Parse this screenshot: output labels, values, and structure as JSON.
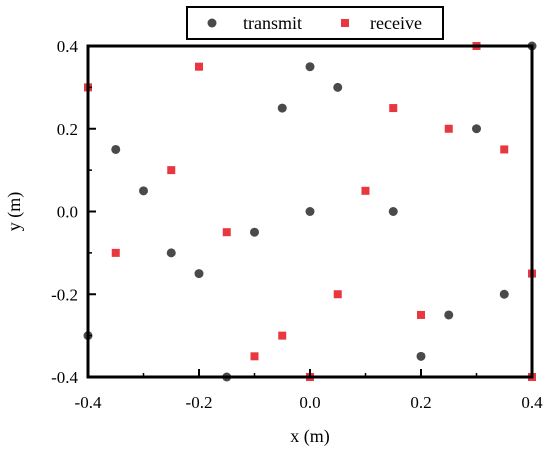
{
  "chart_data": {
    "type": "scatter",
    "title": "",
    "xlabel": "x (m)",
    "ylabel": "y (m)",
    "xlim": [
      -0.4,
      0.4
    ],
    "ylim": [
      -0.4,
      0.4
    ],
    "xticks": [
      "-0.4",
      "-0.2",
      "0.0",
      "0.2",
      "0.4"
    ],
    "yticks": [
      "-0.4",
      "-0.2",
      "0.0",
      "0.2",
      "0.4"
    ],
    "grid": false,
    "legend_position": "top-center",
    "series": [
      {
        "name": "transmit",
        "marker": "circle",
        "color": "#4a4a4a",
        "points": [
          [
            0.0,
            0.35
          ],
          [
            -0.05,
            0.25
          ],
          [
            0.05,
            0.3
          ],
          [
            0.4,
            0.4
          ],
          [
            -0.35,
            0.15
          ],
          [
            0.3,
            0.2
          ],
          [
            -0.3,
            0.05
          ],
          [
            0.0,
            0.0
          ],
          [
            0.15,
            0.0
          ],
          [
            -0.1,
            -0.05
          ],
          [
            -0.25,
            -0.1
          ],
          [
            -0.2,
            -0.15
          ],
          [
            0.35,
            -0.2
          ],
          [
            0.25,
            -0.25
          ],
          [
            -0.4,
            -0.3
          ],
          [
            0.2,
            -0.35
          ],
          [
            -0.15,
            -0.4
          ]
        ]
      },
      {
        "name": "receive",
        "marker": "square",
        "color": "#e8373f",
        "points": [
          [
            0.3,
            0.4
          ],
          [
            -0.2,
            0.35
          ],
          [
            -0.4,
            0.3
          ],
          [
            0.15,
            0.25
          ],
          [
            0.25,
            0.2
          ],
          [
            0.35,
            0.15
          ],
          [
            -0.25,
            0.1
          ],
          [
            0.1,
            0.05
          ],
          [
            -0.15,
            -0.05
          ],
          [
            -0.35,
            -0.1
          ],
          [
            0.4,
            -0.15
          ],
          [
            0.05,
            -0.2
          ],
          [
            0.2,
            -0.25
          ],
          [
            -0.05,
            -0.3
          ],
          [
            -0.1,
            -0.35
          ],
          [
            0.0,
            -0.4
          ],
          [
            0.4,
            -0.4
          ]
        ]
      }
    ]
  }
}
